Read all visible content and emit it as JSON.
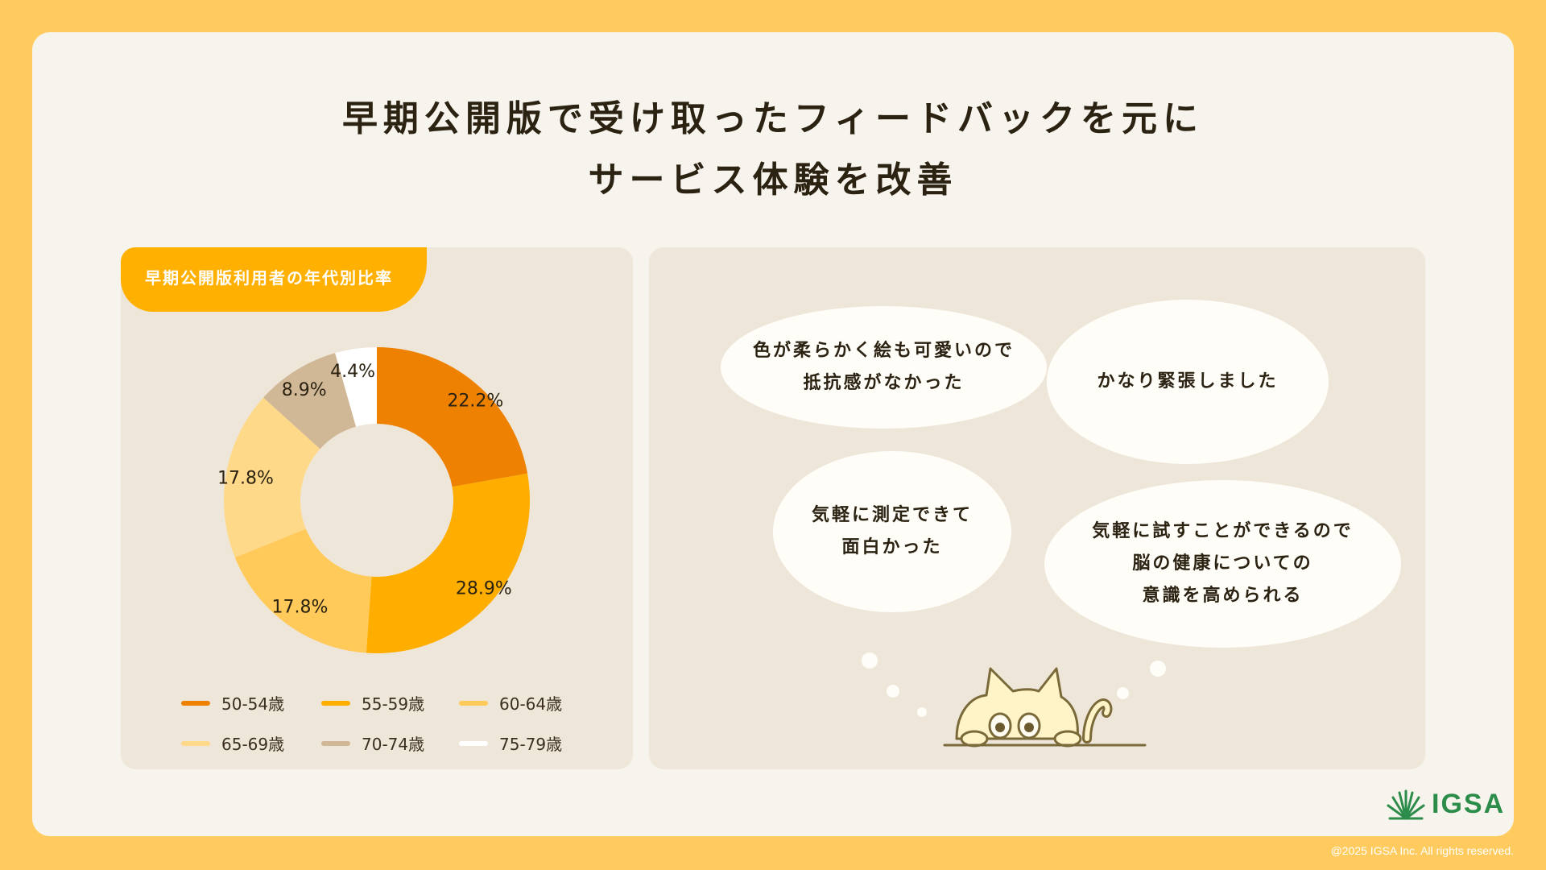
{
  "title_lines": [
    "早期公開版で受け取ったフィードバックを元に",
    "サービス体験を改善"
  ],
  "chart_panel": {
    "label": "早期公開版利用者の年代別比率"
  },
  "chart_data": {
    "type": "pie",
    "title": "早期公開版利用者の年代別比率",
    "unit": "%",
    "categories": [
      "50-54歳",
      "55-59歳",
      "60-64歳",
      "65-69歳",
      "70-74歳",
      "75-79歳"
    ],
    "values": [
      22.2,
      28.9,
      17.8,
      17.8,
      8.9,
      4.4
    ],
    "value_labels": [
      "22.2%",
      "28.9%",
      "17.8%",
      "17.8%",
      "8.9%",
      "4.4%"
    ],
    "colors": [
      "#EE8100",
      "#FFAE00",
      "#FFCA5A",
      "#FFD98A",
      "#D0B796",
      "#FFFFFF"
    ],
    "legend_position": "bottom"
  },
  "feedback": [
    {
      "lines": [
        "色が柔らかく絵も可愛いので",
        "抵抗感がなかった"
      ]
    },
    {
      "lines": [
        "かなり緊張しました"
      ]
    },
    {
      "lines": [
        "気軽に測定できて",
        "面白かった"
      ]
    },
    {
      "lines": [
        "気軽に試すことができるので",
        "脳の健康についての",
        "意識を高められる"
      ]
    }
  ],
  "logo": {
    "text": "IGSA",
    "color": "#2C8C4A"
  },
  "footer": {
    "copyright": "@2025 IGSA Inc. All rights reserved."
  }
}
